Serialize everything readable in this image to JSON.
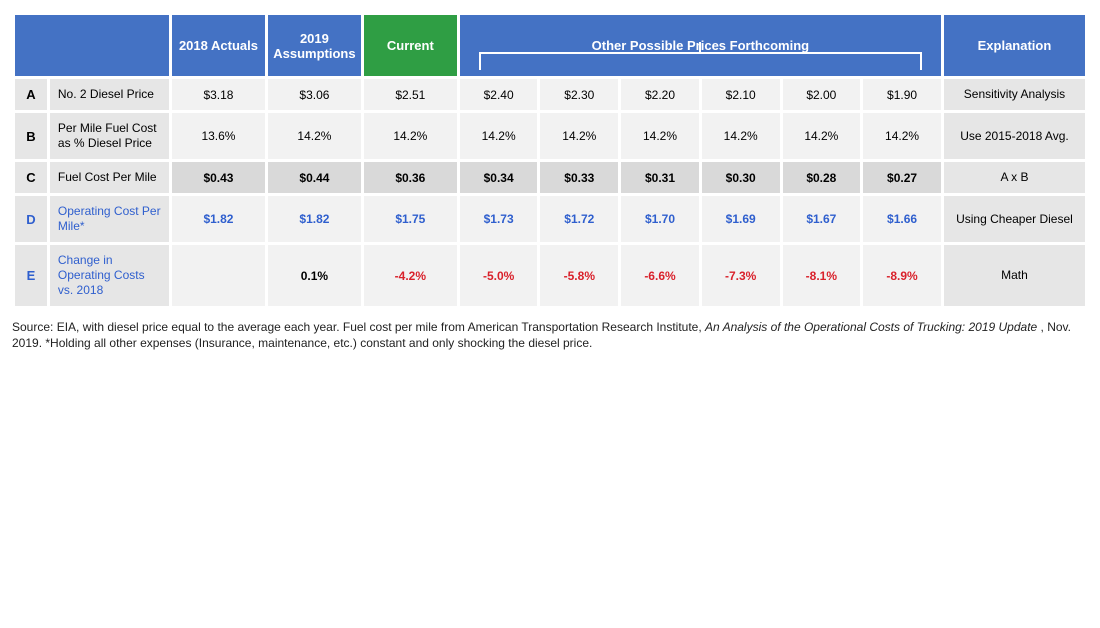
{
  "headers": {
    "blank": "",
    "actuals": "2018 Actuals",
    "assumptions": "2019 Assumptions",
    "current": "Current",
    "other": "Other Possible Prices Forthcoming",
    "explanation": "Explanation"
  },
  "colors": {
    "header_blue": "#4472c4",
    "header_green": "#2f9e44",
    "cell_light": "#f2f2f2",
    "cell_dark": "#d9d9d9",
    "link_blue": "#2f5fce",
    "negative_red": "#d9212b",
    "border": "#ffffff"
  },
  "rows": {
    "A": {
      "letter": "A",
      "label": "No. 2 Diesel Price",
      "actuals": "$3.18",
      "assumptions": "$3.06",
      "current": "$2.51",
      "other": [
        "$2.40",
        "$2.30",
        "$2.20",
        "$2.10",
        "$2.00",
        "$1.90"
      ],
      "explanation": "Sensitivity Analysis",
      "shade": "light",
      "style": "plain"
    },
    "B": {
      "letter": "B",
      "label": "Per Mile Fuel Cost as % Diesel Price",
      "actuals": "13.6%",
      "assumptions": "14.2%",
      "current": "14.2%",
      "other": [
        "14.2%",
        "14.2%",
        "14.2%",
        "14.2%",
        "14.2%",
        "14.2%"
      ],
      "explanation": "Use 2015-2018 Avg.",
      "shade": "light",
      "style": "plain"
    },
    "C": {
      "letter": "C",
      "label": "Fuel Cost Per Mile",
      "actuals": "$0.43",
      "assumptions": "$0.44",
      "current": "$0.36",
      "other": [
        "$0.34",
        "$0.33",
        "$0.31",
        "$0.30",
        "$0.28",
        "$0.27"
      ],
      "explanation": "A x B",
      "shade": "dark",
      "style": "bold"
    },
    "D": {
      "letter": "D",
      "label": "Operating Cost Per Mile*",
      "actuals": "$1.82",
      "assumptions": "$1.82",
      "current": "$1.75",
      "other": [
        "$1.73",
        "$1.72",
        "$1.70",
        "$1.69",
        "$1.67",
        "$1.66"
      ],
      "explanation": "Using Cheaper Diesel",
      "shade": "light",
      "style": "blue",
      "row_blue": true
    },
    "E": {
      "letter": "E",
      "label": "Change in Operating Costs vs. 2018",
      "actuals": "",
      "assumptions": "0.1%",
      "current": "-4.2%",
      "other": [
        "-5.0%",
        "-5.8%",
        "-6.6%",
        "-7.3%",
        "-8.1%",
        "-8.9%"
      ],
      "explanation": "Math",
      "shade": "light",
      "style": "red_except_assumptions",
      "row_blue": true
    }
  },
  "rowOrder": [
    "A",
    "B",
    "C",
    "D",
    "E"
  ],
  "source": {
    "pre": "Source: EIA, with diesel price equal to the average each year. Fuel cost per mile from American Transportation Research Institute, ",
    "ital": "An Analysis of the Operational Costs of Trucking: 2019 Update",
    "post": " , Nov. 2019. *Holding all other expenses (Insurance, maintenance, etc.) constant and only shocking the diesel price."
  }
}
